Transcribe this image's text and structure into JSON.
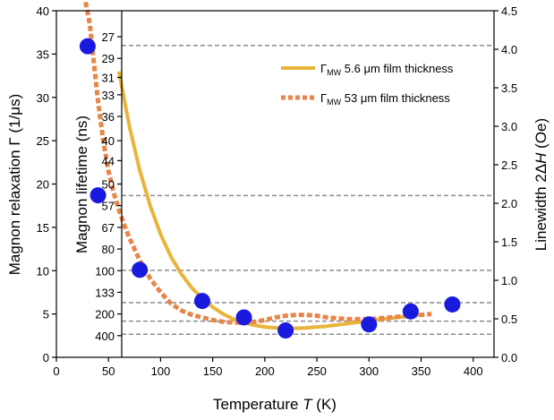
{
  "chart_data": {
    "type": "line",
    "xlabel_main": "Temperature ",
    "xlabel_var": "T",
    "xlabel_unit": " (K)",
    "ylabel_left": "Magnon relaxation  Γ (1/μs)",
    "ylabel_inner": "Magnon lifetime (ns)",
    "ylabel_right_main": "Linewidth 2Δ",
    "ylabel_right_var": "H",
    "ylabel_right_unit": " (Oe)",
    "xlim": [
      0,
      420
    ],
    "ylim_left": [
      0,
      40
    ],
    "ylim_right": [
      0,
      4.5
    ],
    "x_ticks": [
      "0",
      "50",
      "100",
      "150",
      "200",
      "250",
      "300",
      "350",
      "400"
    ],
    "left_ticks": [
      "0",
      "5",
      "10",
      "15",
      "20",
      "25",
      "30",
      "35",
      "40"
    ],
    "right_ticks": [
      "0.0",
      "0.5",
      "1.0",
      "1.5",
      "2.0",
      "2.5",
      "3.0",
      "3.5",
      "4.0",
      "4.5"
    ],
    "lifetime_ticks": [
      {
        "label": "27",
        "gamma": 37.0
      },
      {
        "label": "29",
        "gamma": 34.5
      },
      {
        "label": "31",
        "gamma": 32.3
      },
      {
        "label": "33",
        "gamma": 30.3
      },
      {
        "label": "36",
        "gamma": 27.8
      },
      {
        "label": "40",
        "gamma": 25.0
      },
      {
        "label": "44",
        "gamma": 22.7
      },
      {
        "label": "50",
        "gamma": 20.0
      },
      {
        "label": "57",
        "gamma": 17.5
      },
      {
        "label": "67",
        "gamma": 15.0
      },
      {
        "label": "80",
        "gamma": 12.5
      },
      {
        "label": "100",
        "gamma": 10.0
      },
      {
        "label": "133",
        "gamma": 7.5
      },
      {
        "label": "200",
        "gamma": 5.0
      },
      {
        "label": "400",
        "gamma": 2.5
      }
    ],
    "grid_lines_right": [
      4.05,
      2.1,
      1.13,
      0.71,
      0.47,
      0.3
    ],
    "series": [
      {
        "name_symbol": "Γ",
        "name_sub": "MW",
        "name_rest": " 5.6 μm film thickness",
        "color": "#e8b43a",
        "style": "solid",
        "x": [
          60,
          70,
          80,
          90,
          100,
          110,
          120,
          130,
          140,
          150,
          160,
          170,
          180,
          190,
          200,
          210,
          220,
          230,
          240,
          250,
          260,
          270,
          280,
          290,
          300,
          310,
          320,
          330,
          340,
          350
        ],
        "y": [
          33.0,
          26.7,
          21.6,
          17.5,
          14.2,
          11.6,
          9.6,
          8.0,
          6.8,
          5.8,
          5.0,
          4.4,
          4.0,
          3.7,
          3.5,
          3.4,
          3.35,
          3.35,
          3.4,
          3.5,
          3.6,
          3.75,
          3.9,
          4.05,
          4.2,
          4.35,
          4.5,
          4.65,
          4.8,
          4.95
        ]
      },
      {
        "name_symbol": "Γ",
        "name_sub": "MW",
        "name_rest": " 53 μm film thickness",
        "color": "#e8864a",
        "style": "dashed",
        "x": [
          28,
          32,
          36,
          40,
          45,
          50,
          55,
          60,
          65,
          70,
          80,
          90,
          100,
          110,
          120,
          130,
          140,
          150,
          160,
          170,
          180,
          190,
          200,
          210,
          220,
          230,
          240,
          250,
          260,
          270,
          280,
          290,
          300,
          310,
          320,
          330,
          340,
          350,
          360
        ],
        "y": [
          41.0,
          38.5,
          34.0,
          29.5,
          25.0,
          21.5,
          19.0,
          17.0,
          15.3,
          13.8,
          11.2,
          9.1,
          7.5,
          6.2,
          5.4,
          4.9,
          4.6,
          4.3,
          4.1,
          4.0,
          4.0,
          4.1,
          4.3,
          4.6,
          4.8,
          4.9,
          4.9,
          4.8,
          4.6,
          4.5,
          4.4,
          4.4,
          4.4,
          4.5,
          4.6,
          4.7,
          4.8,
          4.9,
          5.0
        ]
      }
    ],
    "points": {
      "color": "#1a1adf",
      "x": [
        30,
        40,
        80,
        140,
        180,
        220,
        300,
        340,
        380
      ],
      "y": [
        35.9,
        18.7,
        10.1,
        6.5,
        4.6,
        3.1,
        3.8,
        5.3,
        6.1
      ]
    }
  }
}
